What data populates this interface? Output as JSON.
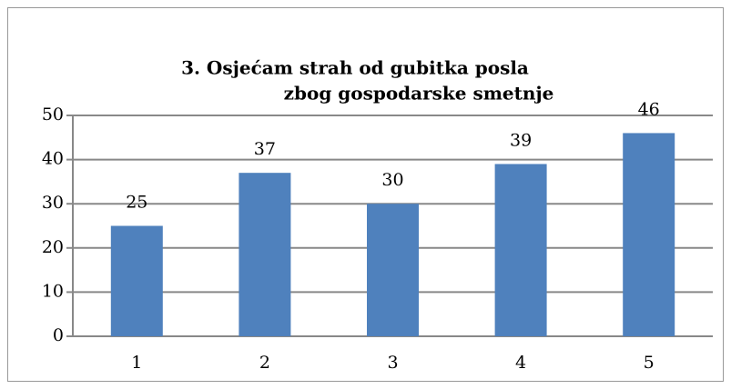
{
  "chart_data": {
    "type": "bar",
    "title": [
      "3. Osjećam strah od gubitka posla",
      "zbog gospodarske smetnje"
    ],
    "categories": [
      "1",
      "2",
      "3",
      "4",
      "5"
    ],
    "values": [
      25,
      37,
      30,
      39,
      46
    ],
    "color": "#4f81bd",
    "ylim": [
      0,
      50
    ],
    "yticks": [
      0,
      10,
      20,
      30,
      40,
      50
    ],
    "grid": true
  }
}
